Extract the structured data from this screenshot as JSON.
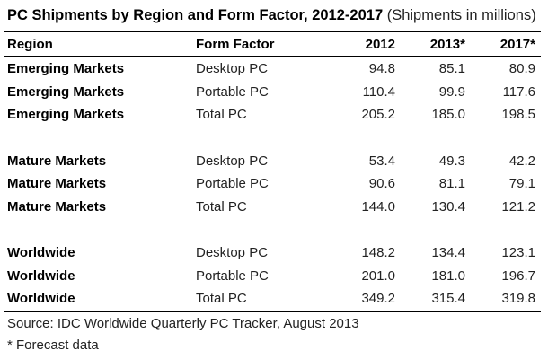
{
  "title": "PC Shipments by Region and Form Factor, 2012-2017",
  "subtitle": "(Shipments in millions)",
  "headers": {
    "region": "Region",
    "form_factor": "Form Factor",
    "y2012": "2012",
    "y2013": "2013*",
    "y2017": "2017*"
  },
  "rows": [
    {
      "region": "Emerging Markets",
      "form": "Desktop PC",
      "y2012": "94.8",
      "y2013": "85.1",
      "y2017": "80.9"
    },
    {
      "region": "Emerging Markets",
      "form": "Portable PC",
      "y2012": "110.4",
      "y2013": "99.9",
      "y2017": "117.6"
    },
    {
      "region": "Emerging Markets",
      "form": "Total PC",
      "y2012": "205.2",
      "y2013": "185.0",
      "y2017": "198.5"
    },
    {
      "region": "Mature Markets",
      "form": "Desktop PC",
      "y2012": "53.4",
      "y2013": "49.3",
      "y2017": "42.2"
    },
    {
      "region": "Mature Markets",
      "form": "Portable PC",
      "y2012": "90.6",
      "y2013": "81.1",
      "y2017": "79.1"
    },
    {
      "region": "Mature Markets",
      "form": "Total PC",
      "y2012": "144.0",
      "y2013": "130.4",
      "y2017": "121.2"
    },
    {
      "region": "Worldwide",
      "form": "Desktop PC",
      "y2012": "148.2",
      "y2013": "134.4",
      "y2017": "123.1"
    },
    {
      "region": "Worldwide",
      "form": "Portable PC",
      "y2012": "201.0",
      "y2013": "181.0",
      "y2017": "196.7"
    },
    {
      "region": "Worldwide",
      "form": "Total PC",
      "y2012": "349.2",
      "y2013": "315.4",
      "y2017": "319.8"
    }
  ],
  "source": "Source: IDC Worldwide Quarterly PC Tracker, August 2013",
  "footnote": "* Forecast data"
}
